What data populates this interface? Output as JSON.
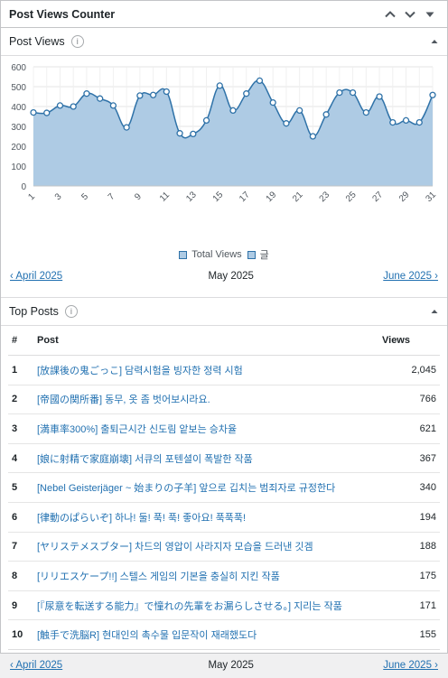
{
  "widget": {
    "title": "Post Views Counter"
  },
  "post_views": {
    "title": "Post Views",
    "info_icon": "i",
    "legend": [
      {
        "label": "Total Views",
        "color": "#aecbe4"
      },
      {
        "label": "글",
        "color": "#aecbe4"
      }
    ],
    "nav": {
      "prev": "‹ April 2025",
      "current": "May 2025",
      "next": "June 2025 ›"
    }
  },
  "chart_data": {
    "type": "area",
    "x": [
      1,
      2,
      3,
      4,
      5,
      6,
      7,
      8,
      9,
      10,
      11,
      12,
      13,
      14,
      15,
      16,
      17,
      18,
      19,
      20,
      21,
      22,
      23,
      24,
      25,
      26,
      27,
      28,
      29,
      30,
      31
    ],
    "x_tick_labels": [
      "1",
      "3",
      "5",
      "7",
      "9",
      "11",
      "13",
      "15",
      "17",
      "19",
      "21",
      "23",
      "25",
      "27",
      "29",
      "31"
    ],
    "series": [
      {
        "name": "Total Views",
        "values": [
          370,
          368,
          405,
          400,
          465,
          440,
          405,
          295,
          455,
          458,
          475,
          265,
          262,
          330,
          505,
          380,
          465,
          530,
          420,
          315,
          380,
          250,
          360,
          470,
          470,
          370,
          450,
          320,
          330,
          320,
          458
        ]
      }
    ],
    "ylim": [
      0,
      600
    ],
    "y_ticks": [
      0,
      100,
      200,
      300,
      400,
      500,
      600
    ],
    "grid": true,
    "line_color": "#2f72a8",
    "fill_color": "#aecbe4"
  },
  "top_posts": {
    "title": "Top Posts",
    "info_icon": "i",
    "headers": {
      "rank": "#",
      "post": "Post",
      "views": "Views"
    },
    "rows": [
      {
        "rank": "1",
        "title": "[放課後の鬼ごっこ] 담력시험을 빙자한 정력 시험",
        "views": "2,045"
      },
      {
        "rank": "2",
        "title": "[帝國の関所番] 동무, 옷 좀 벗어보시라요.",
        "views": "766"
      },
      {
        "rank": "3",
        "title": "[満車率300%] 출퇴근시간 신도림 앝보는 승차율",
        "views": "621"
      },
      {
        "rank": "4",
        "title": "[娘に射精で家庭崩壊] 서큐의 포텐셜이 폭발한 작품",
        "views": "367"
      },
      {
        "rank": "5",
        "title": "[Nebel Geisterjäger ~ 始まりの子羊] 앞으로 깁치는 범죄자로 규정한다",
        "views": "340"
      },
      {
        "rank": "6",
        "title": "[律動のぱらいぞ] 하나! 둘! 푹! 푹! 좋아요! 푹푹푹!",
        "views": "194"
      },
      {
        "rank": "7",
        "title": "[ヤリステメスブター] 차드의 영압이 사라지자 모습을 드러낸 깃겜",
        "views": "188"
      },
      {
        "rank": "8",
        "title": "[リリエスケープ!!] 스텔스 게임의 기본을 충실히 지킨 작품",
        "views": "175"
      },
      {
        "rank": "9",
        "title": "[『尿意を転送する能力』で憧れの先輩をお漏らしさせる。] 지리는 작품",
        "views": "171"
      },
      {
        "rank": "10",
        "title": "[触手で洗脳R] 현대인의 촉수물 입문작이 재래했도다",
        "views": "155"
      }
    ],
    "nav": {
      "prev": "‹ April 2025",
      "current": "May 2025",
      "next": "June 2025 ›"
    }
  }
}
